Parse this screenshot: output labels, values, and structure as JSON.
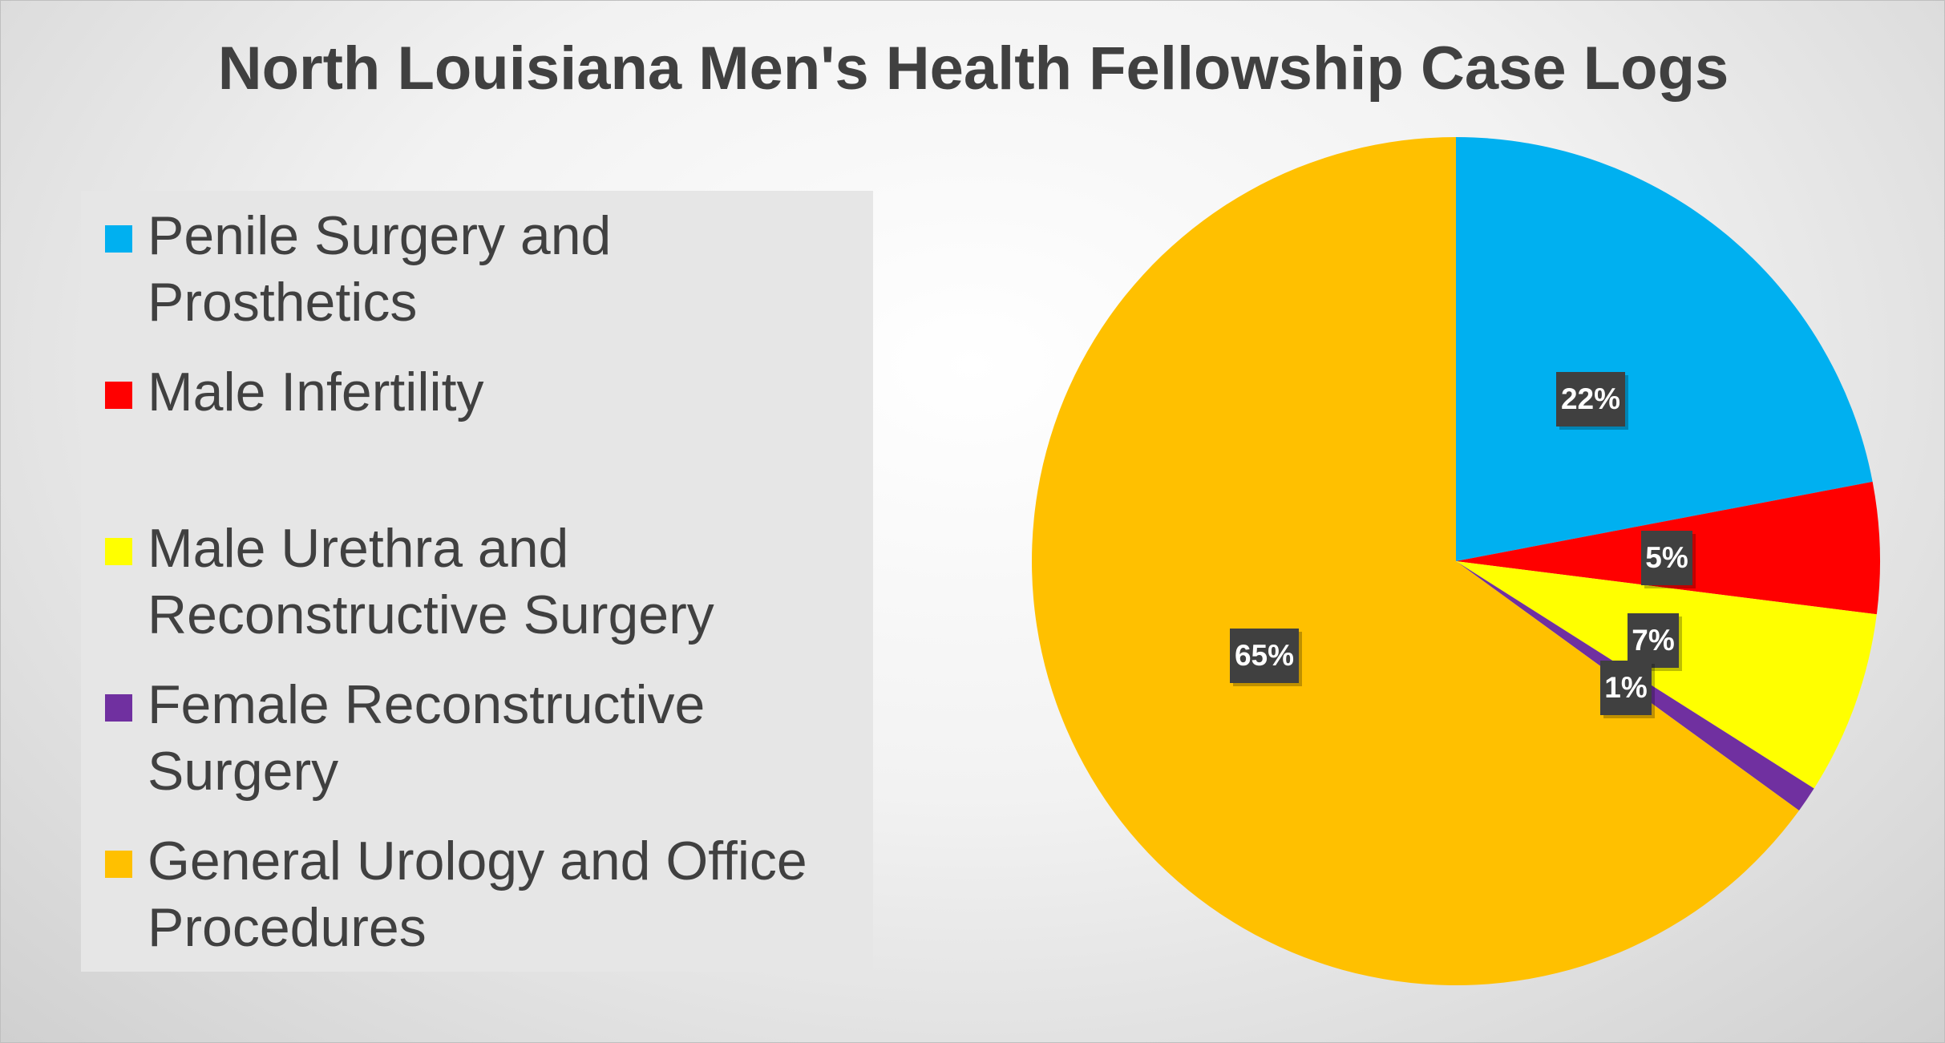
{
  "chart_data": {
    "type": "pie",
    "title": "North Louisiana Men's Health Fellowship Case Logs",
    "categories": [
      "Penile Surgery and Prosthetics",
      "Male Infertility",
      "Male Urethra and Reconstructive Surgery",
      "Female Reconstructive Surgery",
      "General Urology and Office Procedures"
    ],
    "values": [
      22,
      5,
      7,
      1,
      65
    ],
    "value_labels": [
      "22%",
      "5%",
      "7%",
      "1%",
      "65%"
    ],
    "colors": [
      "#00b0f0",
      "#ff0000",
      "#ffff00",
      "#7030a0",
      "#ffc000"
    ]
  }
}
